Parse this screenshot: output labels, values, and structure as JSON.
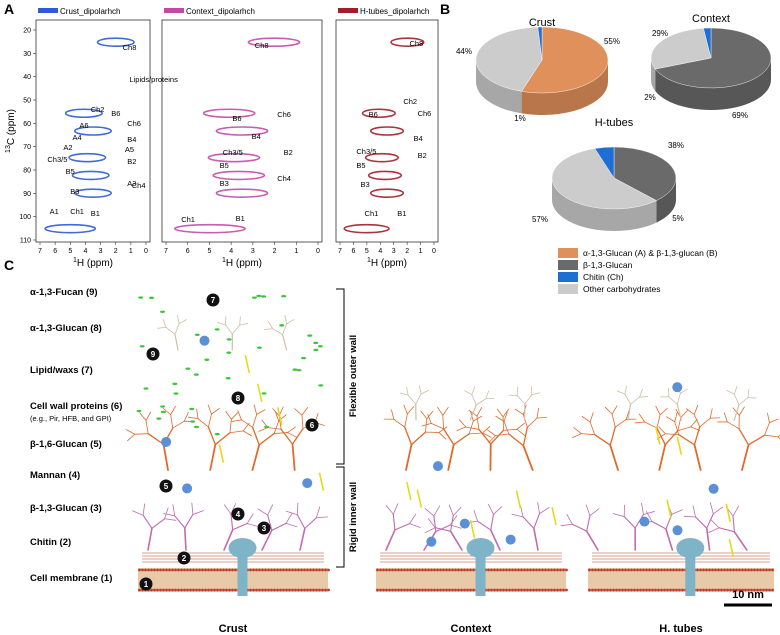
{
  "panel_a": {
    "letter": "A",
    "spectra": [
      {
        "legend": "Crust_dipolarhch",
        "color": "#2c5bd3",
        "labels": [
          "Ch8",
          "Lipids/proteins",
          "Ch2",
          "B6",
          "A6",
          "Ch6",
          "A4",
          "B4",
          "A2",
          "A5",
          "Ch3/5",
          "B2",
          "B5",
          "A3",
          "Ch4",
          "B3",
          "A1",
          "Ch1",
          "B1"
        ]
      },
      {
        "legend": "Context_dipolarhch",
        "color": "#c14aa8",
        "labels": [
          "Ch8",
          "B6",
          "Ch6",
          "B4",
          "Ch3/5",
          "B2",
          "B5",
          "Ch4",
          "B3",
          "Ch1",
          "B1"
        ]
      },
      {
        "legend": "H-tubes_dipolarhch",
        "color": "#a11d2a",
        "labels": [
          "Ch8",
          "Ch2",
          "B6",
          "Ch6",
          "B4",
          "Ch3/5",
          "B2",
          "B5",
          "B3",
          "Ch1",
          "B1"
        ]
      }
    ],
    "y_axis_label": "13C (ppm)",
    "y_axis_sup": "13",
    "y_axis_rest": "C (ppm)",
    "x_axis_label_sup": "1",
    "x_axis_label_rest": "H (ppm)",
    "x_ticks": [
      "7",
      "6",
      "5",
      "4",
      "3",
      "2",
      "1",
      "0"
    ],
    "y_ticks": [
      "20",
      "30",
      "40",
      "50",
      "60",
      "70",
      "80",
      "90",
      "100",
      "110"
    ]
  },
  "panel_b": {
    "letter": "B",
    "pies": [
      {
        "title": "Crust",
        "labels": [
          "55%",
          "44%",
          "1%"
        ],
        "slices": [
          {
            "key": "ab",
            "value": 55
          },
          {
            "key": "other",
            "value": 44
          },
          {
            "key": "chitin",
            "value": 1
          }
        ]
      },
      {
        "title": "Context",
        "labels": [
          "69%",
          "29%",
          "2%"
        ],
        "slices": [
          {
            "key": "b13",
            "value": 69
          },
          {
            "key": "other",
            "value": 29
          },
          {
            "key": "chitin",
            "value": 2
          }
        ]
      },
      {
        "title": "H-tubes",
        "labels": [
          "38%",
          "57%",
          "5%"
        ],
        "slices": [
          {
            "key": "b13",
            "value": 38
          },
          {
            "key": "other",
            "value": 57
          },
          {
            "key": "chitin",
            "value": 5
          }
        ]
      }
    ],
    "legend": [
      {
        "key": "ab",
        "label": "α-1,3-Glucan (A) & β-1,3-glucan (B)",
        "color": "#e0905a"
      },
      {
        "key": "b13",
        "label": "β-1,3-Glucan",
        "color": "#6a6a6a"
      },
      {
        "key": "chitin",
        "label": "Chitin (Ch)",
        "color": "#1f6ed4"
      },
      {
        "key": "other",
        "label": "Other carbohydrates",
        "color": "#cccccc"
      }
    ]
  },
  "panel_c": {
    "letter": "C",
    "components": [
      {
        "label": "α-1,3-Fucan (9)"
      },
      {
        "label": "α-1,3-Glucan (8)"
      },
      {
        "label": "Lipid/waxs (7)"
      },
      {
        "label": "Cell wall proteins (6)"
      },
      {
        "label": "(e.g., Pir, HFB, and GPI)"
      },
      {
        "label": "β-1,6-Glucan (5)"
      },
      {
        "label": "Mannan (4)"
      },
      {
        "label": "β-1,3-Glucan (3)"
      },
      {
        "label": "Chitin (2)"
      },
      {
        "label": "Cell membrane (1)"
      }
    ],
    "bracket_outer": "Flexible outer wall",
    "bracket_inner": "Rigid inner wall",
    "model_titles": [
      "Crust",
      "Context",
      "H. tubes"
    ],
    "markers": [
      "1",
      "2",
      "3",
      "4",
      "5",
      "6",
      "7",
      "8",
      "9"
    ],
    "scale_bar": "10 nm"
  }
}
